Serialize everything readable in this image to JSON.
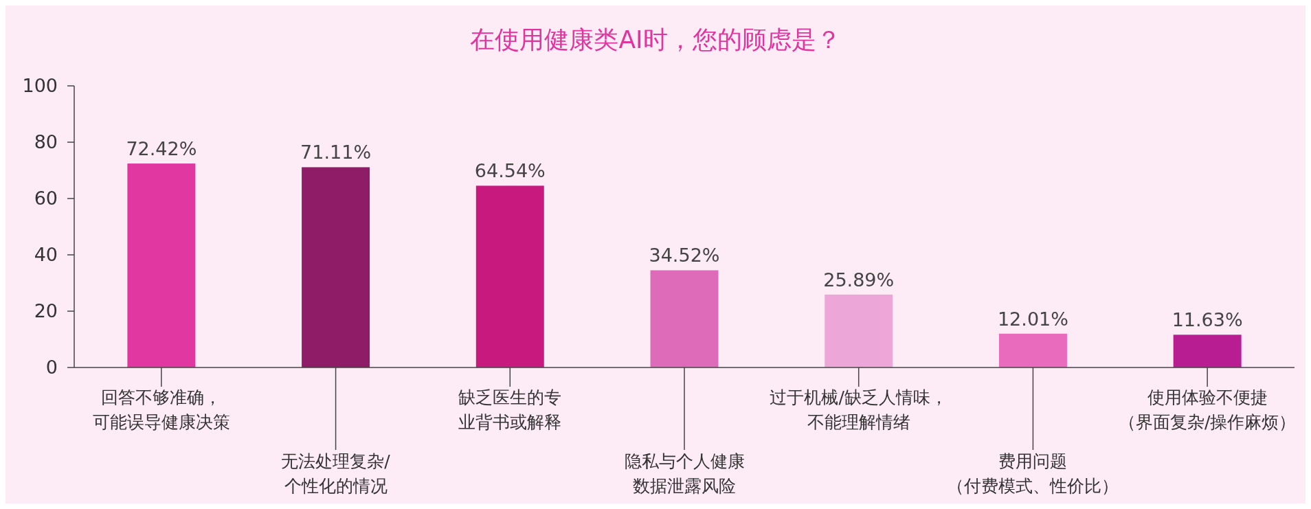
{
  "chart_data": {
    "type": "bar",
    "title": "在使用健康类AI时，您的顾虑是？",
    "categories": [
      "回答不够准确，可能误导健康决策",
      "无法处理复杂/个性化的情况",
      "缺乏医生的专业背书或解释",
      "隐私与个人健康数据泄露风险",
      "过于机械/缺乏人情味，不能理解情绪",
      "费用问题（付费模式、性价比）",
      "使用体验不便捷（界面复杂/操作麻烦）"
    ],
    "values": [
      72.42,
      71.11,
      64.54,
      34.52,
      25.89,
      12.01,
      11.63
    ],
    "value_labels": [
      "72.42%",
      "71.11%",
      "64.54%",
      "34.52%",
      "25.89%",
      "12.01%",
      "11.63%"
    ],
    "colors": [
      "#e038a0",
      "#8e1c66",
      "#c8197f",
      "#de6bb9",
      "#eda6d8",
      "#e86bbd",
      "#b81e92"
    ],
    "ylim": [
      0,
      100
    ],
    "yticks": [
      0,
      20,
      40,
      60,
      80,
      100
    ],
    "grid": false
  }
}
